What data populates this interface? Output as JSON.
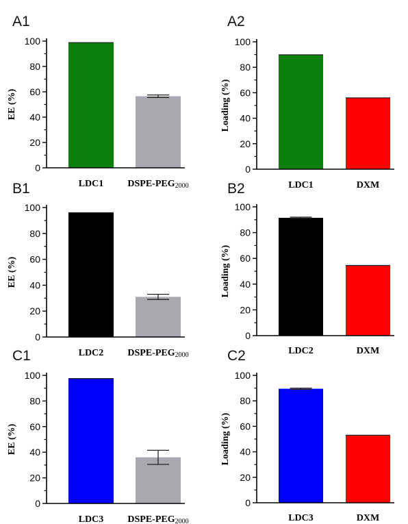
{
  "chart_data": [
    {
      "id": "A1",
      "panel_label": "A1",
      "type": "bar",
      "ylabel": "EE (%)",
      "ylim": [
        0,
        100
      ],
      "yticks": [
        0,
        20,
        40,
        60,
        80,
        100
      ],
      "categories": [
        {
          "main": "LDC1",
          "sub": ""
        },
        {
          "main": "DSPE-PEG",
          "sub": "2000"
        }
      ],
      "values": [
        98.8,
        56.5
      ],
      "errors": [
        0,
        1.0
      ],
      "colors": [
        "#0a800a",
        "#a8a8ae"
      ]
    },
    {
      "id": "A2",
      "panel_label": "A2",
      "type": "bar",
      "ylabel": "Loading (%)",
      "ylim": [
        0,
        100
      ],
      "yticks": [
        0,
        20,
        40,
        60,
        80,
        100
      ],
      "categories": [
        {
          "main": "LDC1",
          "sub": ""
        },
        {
          "main": "DXM",
          "sub": ""
        }
      ],
      "values": [
        89.8,
        56.0
      ],
      "errors": [
        0,
        0
      ],
      "colors": [
        "#0a800a",
        "#ff0000"
      ]
    },
    {
      "id": "B1",
      "panel_label": "B1",
      "type": "bar",
      "ylabel": "EE (%)",
      "ylim": [
        0,
        100
      ],
      "yticks": [
        0,
        20,
        40,
        60,
        80,
        100
      ],
      "categories": [
        {
          "main": "LDC2",
          "sub": ""
        },
        {
          "main": "DSPE-PEG",
          "sub": "2000"
        }
      ],
      "values": [
        96.0,
        31.0
      ],
      "errors": [
        0,
        2.0
      ],
      "colors": [
        "#000000",
        "#a8a8ae"
      ]
    },
    {
      "id": "B2",
      "panel_label": "B2",
      "type": "bar",
      "ylabel": "Loading (%)",
      "ylim": [
        0,
        100
      ],
      "yticks": [
        0,
        20,
        40,
        60,
        80,
        100
      ],
      "categories": [
        {
          "main": "LDC2",
          "sub": ""
        },
        {
          "main": "DXM",
          "sub": ""
        }
      ],
      "values": [
        91.5,
        54.5
      ],
      "errors": [
        0.5,
        0
      ],
      "colors": [
        "#000000",
        "#ff0000"
      ]
    },
    {
      "id": "C1",
      "panel_label": "C1",
      "type": "bar",
      "ylabel": "EE (%)",
      "ylim": [
        0,
        100
      ],
      "yticks": [
        0,
        20,
        40,
        60,
        80,
        100
      ],
      "categories": [
        {
          "main": "LDC3",
          "sub": ""
        },
        {
          "main": "DSPE-PEG",
          "sub": "2000"
        }
      ],
      "values": [
        97.5,
        36.0
      ],
      "errors": [
        0,
        5.5
      ],
      "colors": [
        "#0000ff",
        "#a8a8ae"
      ]
    },
    {
      "id": "C2",
      "panel_label": "C2",
      "type": "bar",
      "ylabel": "Loading (%)",
      "ylim": [
        0,
        100
      ],
      "yticks": [
        0,
        20,
        40,
        60,
        80,
        100
      ],
      "categories": [
        {
          "main": "LDC3",
          "sub": ""
        },
        {
          "main": "DXM",
          "sub": ""
        }
      ],
      "values": [
        89.5,
        53.0
      ],
      "errors": [
        0.5,
        0
      ],
      "colors": [
        "#0000ff",
        "#ff0000"
      ]
    }
  ]
}
